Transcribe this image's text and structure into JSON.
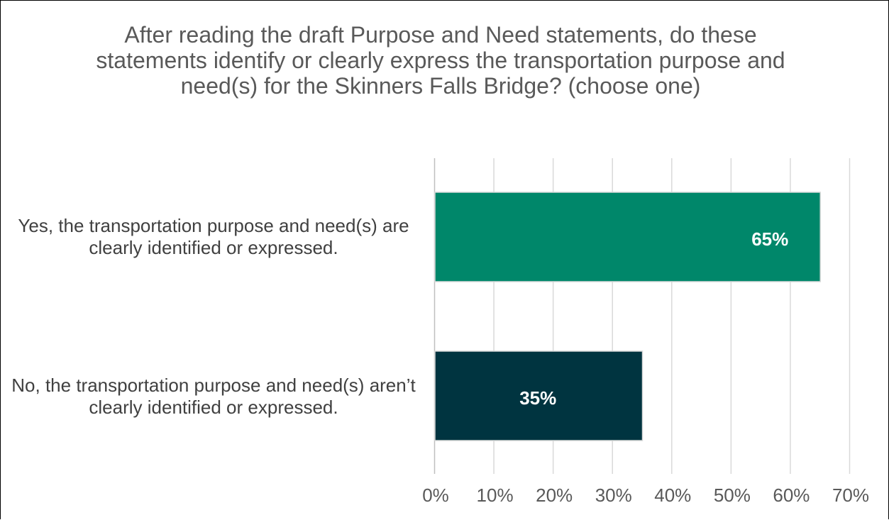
{
  "chart_data": {
    "type": "bar",
    "orientation": "horizontal",
    "title": "After reading the draft Purpose and Need statements, do these statements identify or clearly express the transportation purpose and need(s) for the Skinners Falls Bridge? (choose one)",
    "categories": [
      "Yes, the transportation purpose and need(s) are clearly identified or expressed.",
      "No, the transportation purpose and need(s) aren’t clearly identified or expressed."
    ],
    "values": [
      65,
      35
    ],
    "data_labels": [
      "65%",
      "35%"
    ],
    "bar_colors": [
      "#00876a",
      "#003440"
    ],
    "xlim": [
      0,
      70
    ],
    "x_ticks": [
      0,
      10,
      20,
      30,
      40,
      50,
      60,
      70
    ],
    "x_tick_labels": [
      "0%",
      "10%",
      "20%",
      "30%",
      "40%",
      "50%",
      "60%",
      "70%"
    ],
    "xlabel": "",
    "ylabel": "",
    "grid": true,
    "legend": "none"
  }
}
